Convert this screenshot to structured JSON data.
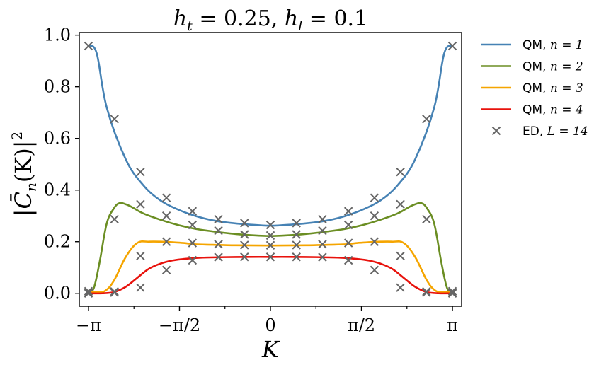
{
  "chart_data": {
    "type": "line",
    "title": "h_t = 0.25, h_l = 0.1",
    "title_parts": {
      "h": "h",
      "t_sub": "t",
      "eq1": " = 0.25, ",
      "l_sub": "l",
      "eq2": " = 0.1"
    },
    "xlabel": "K",
    "ylabel": "|C̄_n(K)|²",
    "ylabel_parts": {
      "open": "|",
      "C": "C̄",
      "n_sub": "n",
      "arg": "(K)|",
      "sq": "2"
    },
    "xlim": [
      -3.3,
      3.3
    ],
    "ylim": [
      -0.05,
      1.01
    ],
    "x_ticks": [
      {
        "value": -3.14159,
        "label": "−π"
      },
      {
        "value": -1.5708,
        "label": "−π/2"
      },
      {
        "value": 0,
        "label": "0"
      },
      {
        "value": 1.5708,
        "label": "π/2"
      },
      {
        "value": 3.14159,
        "label": "π"
      }
    ],
    "x_minor_ticks": [
      -2.3562,
      -0.7854,
      0.7854,
      2.3562
    ],
    "y_ticks": [
      {
        "value": 0.0,
        "label": "0.0"
      },
      {
        "value": 0.2,
        "label": "0.2"
      },
      {
        "value": 0.4,
        "label": "0.4"
      },
      {
        "value": 0.6,
        "label": "0.6"
      },
      {
        "value": 0.8,
        "label": "0.8"
      },
      {
        "value": 1.0,
        "label": "1.0"
      }
    ],
    "legend_position": "outside-right",
    "series": [
      {
        "name": "QM, n = 1",
        "legend_text": "QM, ",
        "legend_math": "n = 1",
        "kind": "line",
        "color": "#4682b4",
        "x": [
          -3.1416,
          -3.0,
          -2.827,
          -2.5,
          -2.2,
          -1.9,
          -1.6,
          -1.3,
          -1.0,
          -0.7,
          -0.4,
          0.0,
          0.4,
          0.7,
          1.0,
          1.3,
          1.6,
          1.9,
          2.2,
          2.5,
          2.827,
          3.0,
          3.1416
        ],
        "values": [
          0.958,
          0.93,
          0.72,
          0.52,
          0.42,
          0.36,
          0.325,
          0.3,
          0.283,
          0.273,
          0.267,
          0.262,
          0.267,
          0.273,
          0.283,
          0.3,
          0.325,
          0.36,
          0.42,
          0.52,
          0.72,
          0.93,
          0.958
        ]
      },
      {
        "name": "QM, n = 2",
        "legend_text": "QM, ",
        "legend_math": "n = 2",
        "kind": "line",
        "color": "#6b8e23",
        "x": [
          -3.1416,
          -3.05,
          -2.95,
          -2.827,
          -2.7,
          -2.6,
          -2.5,
          -2.4,
          -2.2,
          -1.9,
          -1.6,
          -1.3,
          -1.0,
          -0.7,
          -0.4,
          0.0,
          0.4,
          0.7,
          1.0,
          1.3,
          1.6,
          1.9,
          2.2,
          2.4,
          2.5,
          2.6,
          2.7,
          2.827,
          2.95,
          3.05,
          3.1416
        ],
        "values": [
          0.008,
          0.02,
          0.12,
          0.27,
          0.33,
          0.35,
          0.345,
          0.335,
          0.31,
          0.285,
          0.265,
          0.25,
          0.24,
          0.232,
          0.226,
          0.222,
          0.226,
          0.232,
          0.24,
          0.25,
          0.265,
          0.285,
          0.31,
          0.335,
          0.345,
          0.35,
          0.33,
          0.27,
          0.12,
          0.02,
          0.008
        ]
      },
      {
        "name": "QM, n = 3",
        "legend_text": "QM, ",
        "legend_math": "n = 3",
        "kind": "line",
        "color": "#f5a500",
        "x": [
          -3.1416,
          -3.0,
          -2.85,
          -2.7,
          -2.5,
          -2.3,
          -2.1,
          -1.9,
          -1.7,
          -1.5,
          -1.3,
          -1.0,
          -0.6,
          0.0,
          0.6,
          1.0,
          1.3,
          1.5,
          1.7,
          1.9,
          2.1,
          2.3,
          2.5,
          2.7,
          2.85,
          3.0,
          3.1416
        ],
        "values": [
          0.005,
          0.005,
          0.01,
          0.05,
          0.14,
          0.195,
          0.2,
          0.2,
          0.198,
          0.195,
          0.19,
          0.188,
          0.186,
          0.185,
          0.186,
          0.188,
          0.19,
          0.195,
          0.198,
          0.2,
          0.2,
          0.195,
          0.14,
          0.05,
          0.01,
          0.005,
          0.005
        ]
      },
      {
        "name": "QM, n = 4",
        "legend_text": "QM, ",
        "legend_math": "n = 4",
        "kind": "line",
        "color": "#e8120c",
        "x": [
          -3.1416,
          -2.9,
          -2.7,
          -2.5,
          -2.3,
          -2.1,
          -1.9,
          -1.7,
          -1.5,
          -1.2,
          -0.8,
          -0.4,
          0.0,
          0.4,
          0.8,
          1.2,
          1.5,
          1.7,
          1.9,
          2.1,
          2.3,
          2.5,
          2.7,
          2.9,
          3.1416
        ],
        "values": [
          0.0,
          0.0,
          0.005,
          0.025,
          0.06,
          0.095,
          0.115,
          0.127,
          0.133,
          0.138,
          0.14,
          0.141,
          0.141,
          0.141,
          0.14,
          0.138,
          0.133,
          0.127,
          0.115,
          0.095,
          0.06,
          0.025,
          0.005,
          0.0,
          0.0
        ]
      },
      {
        "name": "ED, L = 14",
        "legend_text": "ED, ",
        "legend_math": "L = 14",
        "kind": "marker",
        "color": "#666666",
        "x": [
          -3.1416,
          -2.6928,
          -2.244,
          -1.7952,
          -1.3464,
          -0.8976,
          -0.4488,
          0.0,
          0.4488,
          0.8976,
          1.3464,
          1.7952,
          2.244,
          2.6928,
          3.1416
        ],
        "y_groups": [
          [
            0.958,
            0.675,
            0.47,
            0.37,
            0.318,
            0.287,
            0.272,
            0.265,
            0.272,
            0.287,
            0.318,
            0.37,
            0.47,
            0.675,
            0.958
          ],
          [
            0.008,
            0.287,
            0.345,
            0.3,
            0.265,
            0.243,
            0.228,
            0.224,
            0.228,
            0.243,
            0.265,
            0.3,
            0.345,
            0.287,
            0.008
          ],
          [
            0.003,
            0.007,
            0.145,
            0.2,
            0.195,
            0.19,
            0.187,
            0.186,
            0.187,
            0.19,
            0.195,
            0.2,
            0.145,
            0.007,
            0.003
          ],
          [
            0.0,
            0.003,
            0.022,
            0.09,
            0.128,
            0.14,
            0.141,
            0.141,
            0.141,
            0.14,
            0.128,
            0.09,
            0.022,
            0.003,
            0.0
          ]
        ]
      }
    ]
  }
}
